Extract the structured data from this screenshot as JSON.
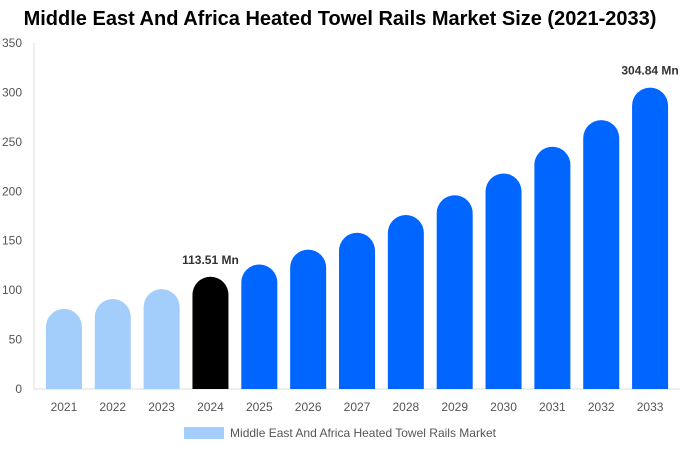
{
  "chart_data": {
    "type": "bar",
    "title": "Middle East And Africa Heated Towel Rails Market Size (2021-2033)",
    "categories": [
      "2021",
      "2022",
      "2023",
      "2024",
      "2025",
      "2026",
      "2027",
      "2028",
      "2029",
      "2030",
      "2031",
      "2032",
      "2033"
    ],
    "series": [
      {
        "name": "Middle East And Africa Heated Towel Rails Market",
        "values": [
          81,
          91,
          101,
          113.51,
          126,
          141,
          158,
          176,
          196,
          218,
          245,
          272,
          304.84
        ]
      }
    ],
    "bar_colors": [
      "#a3cdfb",
      "#a3cdfb",
      "#a3cdfb",
      "#000000",
      "#0066ff",
      "#0066ff",
      "#0066ff",
      "#0066ff",
      "#0066ff",
      "#0066ff",
      "#0066ff",
      "#0066ff",
      "#0066ff"
    ],
    "data_labels": [
      {
        "index": 3,
        "text": "113.51 Mn"
      },
      {
        "index": 12,
        "text": "304.84 Mn"
      }
    ],
    "ylim": [
      0,
      350
    ],
    "yticks": [
      0,
      50,
      100,
      150,
      200,
      250,
      300,
      350
    ],
    "grid": false,
    "legend": "bottom",
    "xlabel": "",
    "ylabel": ""
  }
}
